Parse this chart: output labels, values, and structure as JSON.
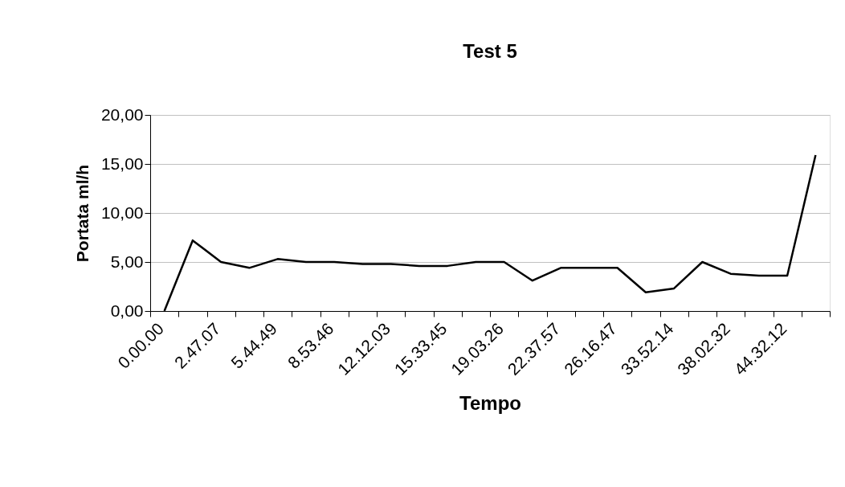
{
  "chart_data": {
    "type": "line",
    "title": "Test 5",
    "xlabel": "Tempo",
    "ylabel": "Portata ml/h",
    "categories": [
      "0.00.00",
      null,
      "2.47.07",
      null,
      "5.44.49",
      null,
      "8.53.46",
      null,
      "12.12.03",
      null,
      "15.33.45",
      null,
      "19.03.26",
      null,
      "22.37.57",
      null,
      "26.16.47",
      null,
      "33.52.14",
      null,
      "38.02.32",
      null,
      "44.32.12",
      null
    ],
    "series": [
      {
        "color": "#000000",
        "values": [
          0,
          7.2,
          5.0,
          4.4,
          5.3,
          5.0,
          5.0,
          4.8,
          4.8,
          4.6,
          4.6,
          5.0,
          5.0,
          3.1,
          4.4,
          4.4,
          4.4,
          1.9,
          2.3,
          5.0,
          3.8,
          3.6,
          3.6,
          15.9
        ]
      }
    ],
    "ylim": [
      0,
      20
    ],
    "yticks": [
      {
        "value": 0,
        "label": "0,00"
      },
      {
        "value": 5,
        "label": "5,00"
      },
      {
        "value": 10,
        "label": "10,00"
      },
      {
        "value": 15,
        "label": "15,00"
      },
      {
        "value": 20,
        "label": "20,00"
      }
    ],
    "grid": "y",
    "legend": false,
    "marker": "none",
    "line_style": "solid"
  }
}
